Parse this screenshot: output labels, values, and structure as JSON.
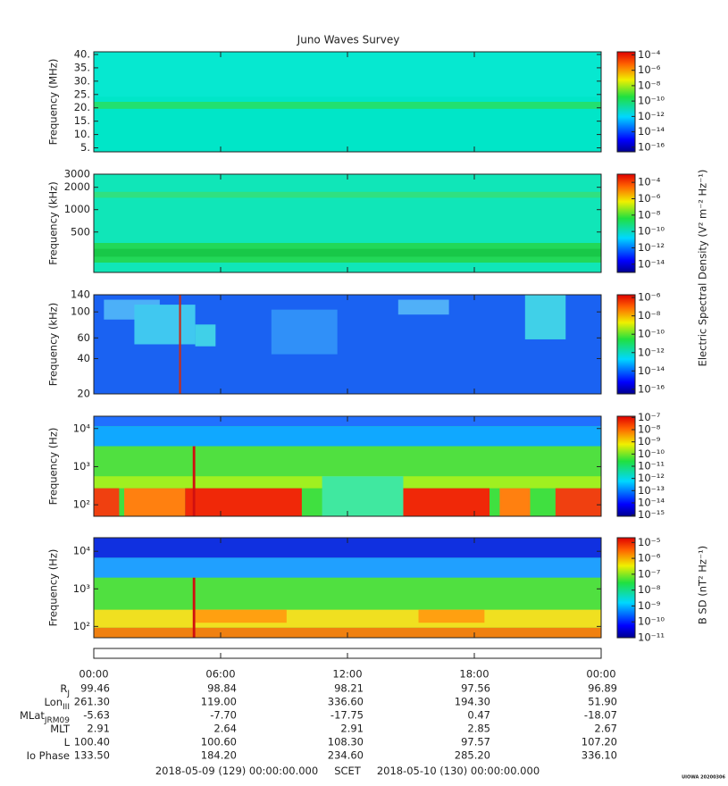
{
  "title": "Juno Waves Survey",
  "panels": [
    {
      "ylabel": "Frequency (MHz)",
      "yscale": "linear",
      "ylim": [
        3.5,
        41
      ],
      "yticks": [
        {
          "value": 5,
          "label": "5."
        },
        {
          "value": 10,
          "label": "10."
        },
        {
          "value": 15,
          "label": "15."
        },
        {
          "value": 20,
          "label": "20."
        },
        {
          "value": 25,
          "label": "25."
        },
        {
          "value": 30,
          "label": "30."
        },
        {
          "value": 35,
          "label": "35."
        },
        {
          "value": 40,
          "label": "40."
        }
      ],
      "clim": [
        -16.6,
        -3.6
      ],
      "cticks": [
        {
          "value": -4,
          "label": "10⁻⁴"
        },
        {
          "value": -6,
          "label": "10⁻⁶"
        },
        {
          "value": -8,
          "label": "10⁻⁸"
        },
        {
          "value": -10,
          "label": "10⁻¹⁰"
        },
        {
          "value": -12,
          "label": "10⁻¹²"
        },
        {
          "value": -14,
          "label": "10⁻¹⁴"
        },
        {
          "value": -16,
          "label": "10⁻¹⁶"
        }
      ]
    },
    {
      "ylabel": "Frequency (kHz)",
      "yscale": "log",
      "ylim": [
        143,
        3000
      ],
      "yticks": [
        500,
        1000,
        2000,
        3000
      ],
      "clim": [
        -15,
        -3
      ],
      "cticks": [
        {
          "value": -4,
          "label": "10⁻⁴"
        },
        {
          "value": -6,
          "label": "10⁻⁶"
        },
        {
          "value": -8,
          "label": "10⁻⁸"
        },
        {
          "value": -10,
          "label": "10⁻¹⁰"
        },
        {
          "value": -12,
          "label": "10⁻¹²"
        },
        {
          "value": -14,
          "label": "10⁻¹⁴"
        }
      ]
    },
    {
      "ylabel": "Frequency (kHz)",
      "yscale": "log",
      "ylim": [
        20,
        140
      ],
      "yticks": [
        20,
        40,
        60,
        100,
        140
      ],
      "clim": [
        -16.5,
        -5.7
      ],
      "cticks": [
        {
          "value": -6,
          "label": "10⁻⁶"
        },
        {
          "value": -8,
          "label": "10⁻⁸"
        },
        {
          "value": -10,
          "label": "10⁻¹⁰"
        },
        {
          "value": -12,
          "label": "10⁻¹²"
        },
        {
          "value": -14,
          "label": "10⁻¹⁴"
        },
        {
          "value": -16,
          "label": "10⁻¹⁶"
        }
      ]
    },
    {
      "ylabel": "Frequency (Hz)",
      "yscale": "log",
      "ylim": [
        50,
        21000
      ],
      "yticks": [
        {
          "value": 100,
          "label": "10²"
        },
        {
          "value": 1000,
          "label": "10³"
        },
        {
          "value": 10000,
          "label": "10⁴"
        }
      ],
      "clim": [
        -15.1,
        -6.9
      ],
      "cticks": [
        {
          "value": -7,
          "label": "10⁻⁷"
        },
        {
          "value": -8,
          "label": "10⁻⁸"
        },
        {
          "value": -9,
          "label": "10⁻⁹"
        },
        {
          "value": -10,
          "label": "10⁻¹⁰"
        },
        {
          "value": -11,
          "label": "10⁻¹¹"
        },
        {
          "value": -12,
          "label": "10⁻¹²"
        },
        {
          "value": -13,
          "label": "10⁻¹³"
        },
        {
          "value": -14,
          "label": "10⁻¹⁴"
        },
        {
          "value": -15,
          "label": "10⁻¹⁵"
        }
      ]
    },
    {
      "ylabel": "Frequency (Hz)",
      "yscale": "log",
      "ylim": [
        50,
        23000
      ],
      "yticks": [
        {
          "value": 100,
          "label": "10²"
        },
        {
          "value": 1000,
          "label": "10³"
        },
        {
          "value": 10000,
          "label": "10⁴"
        }
      ],
      "clim": [
        -11,
        -4.7
      ],
      "cticks": [
        {
          "value": -5,
          "label": "10⁻⁵"
        },
        {
          "value": -6,
          "label": "10⁻⁶"
        },
        {
          "value": -7,
          "label": "10⁻⁷"
        },
        {
          "value": -8,
          "label": "10⁻⁸"
        },
        {
          "value": -9,
          "label": "10⁻⁹"
        },
        {
          "value": -10,
          "label": "10⁻¹⁰"
        },
        {
          "value": -11,
          "label": "10⁻¹¹"
        }
      ]
    }
  ],
  "colorbar_labels": [
    "Electric Spectral Density (V² m⁻² Hz⁻¹)",
    "B SD (nT² Hz⁻¹)"
  ],
  "time_axis": {
    "xlim": [
      0,
      24
    ],
    "xticks": [
      {
        "value": 0,
        "label": "00:00"
      },
      {
        "value": 6,
        "label": "06:00"
      },
      {
        "value": 12,
        "label": "12:00"
      },
      {
        "value": 18,
        "label": "18:00"
      },
      {
        "value": 24,
        "label": "00:00"
      }
    ]
  },
  "ephemeris": {
    "rows": [
      {
        "label": "R",
        "sub": "J",
        "values": [
          "99.46",
          "98.84",
          "98.21",
          "97.56",
          "96.89"
        ]
      },
      {
        "label": "Lon",
        "sub": "III",
        "values": [
          "261.30",
          "119.00",
          "336.60",
          "194.30",
          "51.90"
        ]
      },
      {
        "label": "MLat",
        "sub": "JRM09",
        "values": [
          "-5.63",
          "-7.70",
          "-17.75",
          "0.47",
          "-18.07"
        ]
      },
      {
        "label": "MLT",
        "values": [
          "2.91",
          "2.64",
          "2.91",
          "2.85",
          "2.67"
        ]
      },
      {
        "label": "L",
        "values": [
          "100.40",
          "100.60",
          "108.30",
          "97.57",
          "107.20"
        ]
      },
      {
        "label": "Io Phase",
        "values": [
          "133.50",
          "184.20",
          "234.60",
          "285.20",
          "336.10"
        ]
      }
    ]
  },
  "footer": {
    "start": "2018-05-09 (129) 00:00:00.000",
    "center": "SCET",
    "end": "2018-05-10 (130) 00:00:00.000"
  },
  "credit": "UIOWA 20200306"
}
